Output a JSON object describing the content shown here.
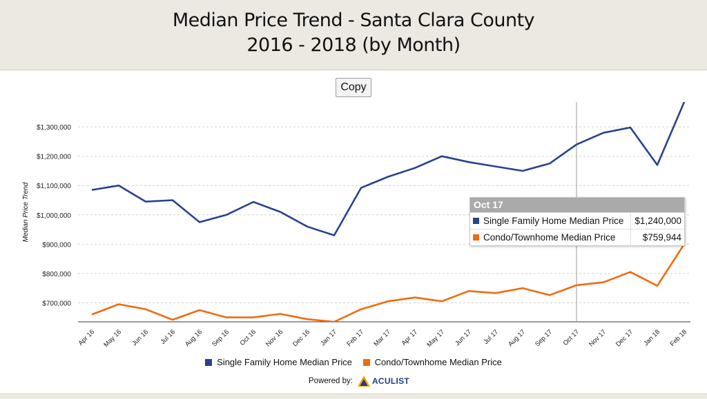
{
  "header": {
    "title_line1": "Median Price Trend - Santa Clara County",
    "title_line2": "2016 - 2018 (by Month)"
  },
  "copy_label": "Copy",
  "chart_data": {
    "type": "line",
    "categories": [
      "Apr 16",
      "May 16",
      "Jun 16",
      "Jul 16",
      "Aug 16",
      "Sep 16",
      "Oct 16",
      "Nov 16",
      "Dec 16",
      "Jan 17",
      "Feb 17",
      "Mar 17",
      "Apr 17",
      "May 17",
      "Jun 17",
      "Jul 17",
      "Aug 17",
      "Sep 17",
      "Oct 17",
      "Nov 17",
      "Dec 17",
      "Jan 18",
      "Feb 18"
    ],
    "series": [
      {
        "name": "Single Family Home Median Price",
        "color": "#27418f",
        "values": [
          1085000,
          1100000,
          1045000,
          1050000,
          975000,
          1000000,
          1044000,
          1010000,
          960000,
          930000,
          1092000,
          1130000,
          1160000,
          1200000,
          1180000,
          1165000,
          1150000,
          1175000,
          1240000,
          1280000,
          1298000,
          1170000,
          1385000
        ]
      },
      {
        "name": "Condo/Townhome Median Price",
        "color": "#f06b0f",
        "values": [
          660000,
          695000,
          678000,
          642000,
          675000,
          650000,
          650000,
          662000,
          644000,
          635000,
          678000,
          705000,
          718000,
          705000,
          740000,
          733000,
          750000,
          726000,
          759944,
          770000,
          805000,
          758000,
          900000
        ]
      }
    ],
    "ylabel": "Median Price Trend",
    "y_ticks": [
      "$700,000",
      "$800,000",
      "$900,000",
      "$1,000,000",
      "$1,100,000",
      "$1,200,000",
      "$1,300,000"
    ],
    "ylim": [
      635000,
      1385000
    ],
    "grid": true,
    "legend_position": "bottom-center",
    "tooltip": {
      "category": "Oct 17",
      "rows": [
        {
          "label": "Single Family Home Median Price",
          "value": "$1,240,000",
          "color": "#27418f"
        },
        {
          "label": "Condo/Townhome Median Price",
          "value": "$759,944",
          "color": "#f06b0f"
        }
      ]
    }
  },
  "powered_by": {
    "label": "Powered by:",
    "brand": "ACULIST"
  }
}
